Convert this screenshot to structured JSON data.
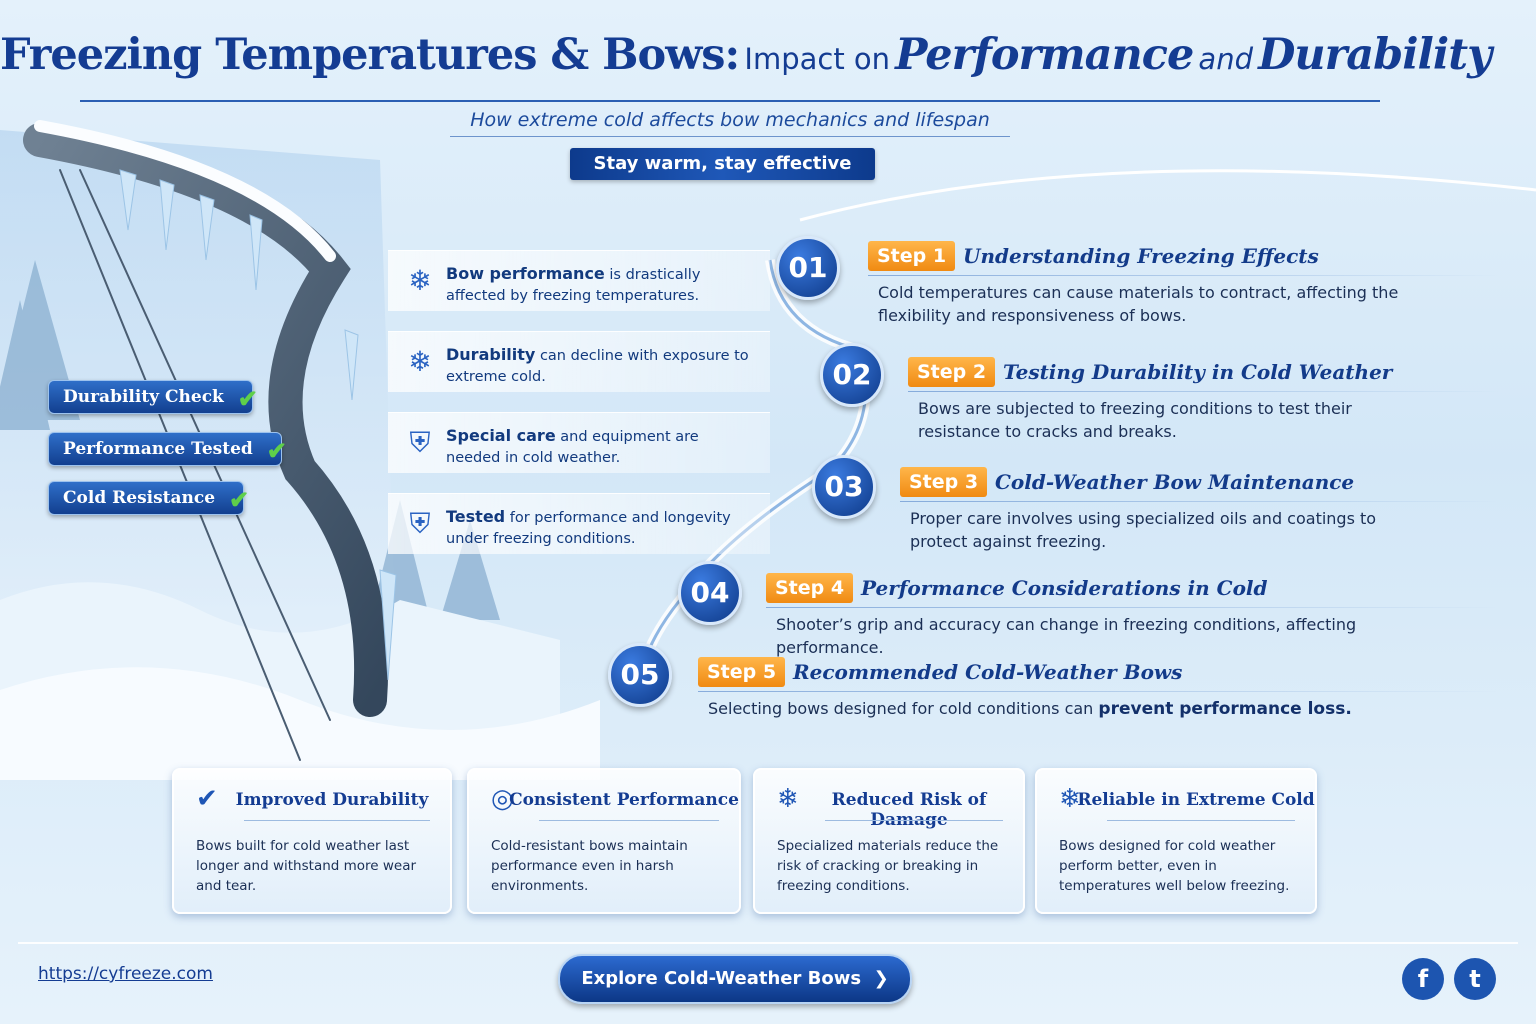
{
  "header": {
    "title_parts": [
      "Freezing Temperatures & Bows:",
      "Impact on",
      "Performance",
      "and",
      "Durability"
    ],
    "subtitle": "How extreme cold affects bow mechanics and lifespan",
    "tagline": "Stay warm, stay effective"
  },
  "badges": [
    "Durability Check",
    "Performance Tested",
    "Cold Resistance"
  ],
  "facts": [
    {
      "bold": "Bow performance",
      "text": "is drastically affected by freezing temperatures."
    },
    {
      "bold": "Durability",
      "text": "can decline with exposure to extreme cold."
    },
    {
      "bold": "Special care",
      "text": "and equipment are needed in cold weather."
    },
    {
      "bold": "Tested",
      "text": "for performance and longevity under freezing conditions."
    }
  ],
  "steps": [
    {
      "number": "01",
      "label": "Step 1",
      "title": "Understanding Freezing Effects",
      "text": "Cold temperatures can cause materials to contract, affecting the flexibility and responsiveness of bows."
    },
    {
      "number": "02",
      "label": "Step 2",
      "title": "Testing Durability in Cold Weather",
      "text": "Bows are subjected to freezing conditions to test their resistance to cracks and breaks."
    },
    {
      "number": "03",
      "label": "Step 3",
      "title": "Cold-Weather Bow Maintenance",
      "text": "Proper care involves using specialized oils and coatings to protect against freezing."
    },
    {
      "number": "04",
      "label": "Step 4",
      "title": "Performance Considerations in Cold",
      "text": "Shooter’s grip and accuracy can change in freezing conditions, affecting performance."
    },
    {
      "number": "05",
      "label": "Step 5",
      "title": "Recommended Cold-Weather Bows",
      "text": "Selecting bows designed for cold conditions can",
      "bold": "prevent performance loss."
    }
  ],
  "benefits": [
    {
      "title": "Improved Durability",
      "text": "Bows built for cold weather last longer and withstand more wear and tear."
    },
    {
      "title": "Consistent Performance",
      "text": "Cold-resistant bows maintain performance even in harsh environments."
    },
    {
      "title": "Reduced Risk of Damage",
      "text": "Specialized materials reduce the risk of cracking or breaking in freezing conditions."
    },
    {
      "title": "Reliable in Extreme Cold",
      "text": "Bows designed for cold weather perform better, even in temperatures well below freezing."
    }
  ],
  "footer": {
    "url": "https://cyfreeze.com",
    "button": "Explore Cold-Weather Bows"
  }
}
